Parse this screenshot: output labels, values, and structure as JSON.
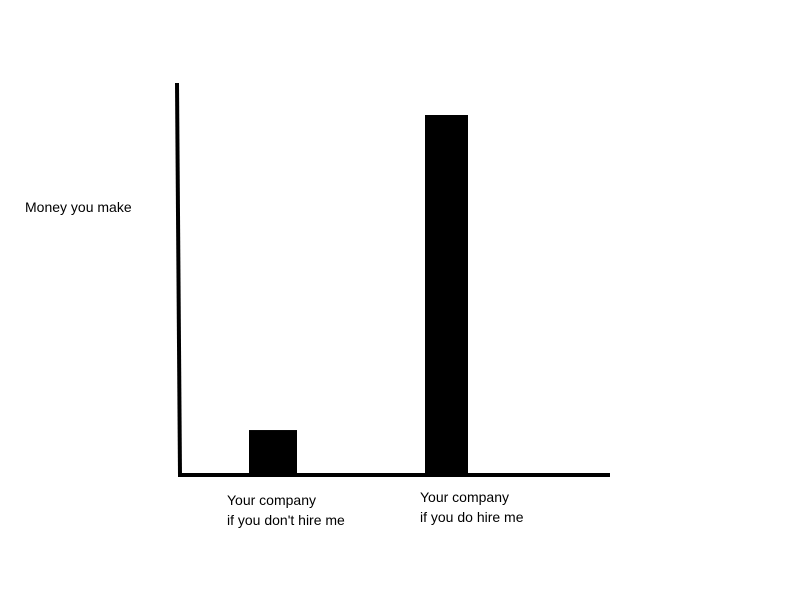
{
  "chart_data": {
    "type": "bar",
    "ylabel": "Money you make",
    "xlabel": "",
    "categories": [
      [
        "Your company",
        "if you don't hire me"
      ],
      [
        "Your company",
        "if you do hire me"
      ]
    ],
    "values": [
      12,
      100
    ],
    "ylim": [
      0,
      110
    ],
    "bar_color": "#000000",
    "axis_color": "#000000",
    "grid": false,
    "legend": "none"
  }
}
